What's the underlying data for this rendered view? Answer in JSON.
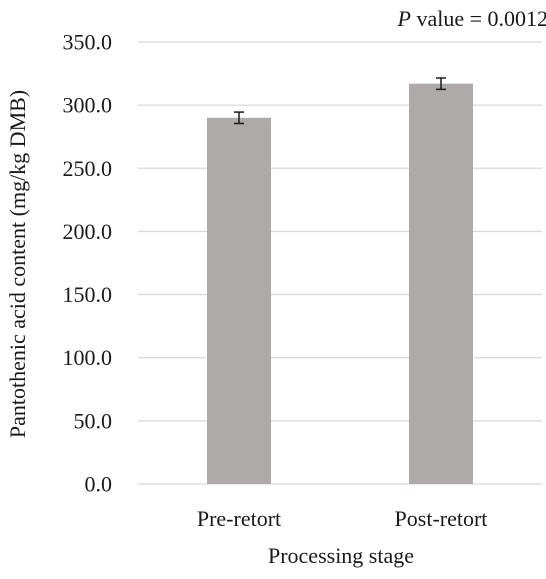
{
  "chart_data": {
    "type": "bar",
    "categories": [
      "Pre-retort",
      "Post-retort"
    ],
    "values": [
      290,
      317
    ],
    "errors": [
      4.5,
      4.5
    ],
    "annotation": {
      "italic": "P",
      "text": " value = 0.0012"
    },
    "xlabel": "Processing stage",
    "ylabel": "Pantothenic acid content (mg/kg DMB)",
    "ylim": [
      0,
      350
    ],
    "yticks": [
      "0.0",
      "50.0",
      "100.0",
      "150.0",
      "200.0",
      "250.0",
      "300.0",
      "350.0"
    ],
    "grid": true,
    "bar_color": "#aeaaaa",
    "grid_color": "#d9d9d9"
  }
}
